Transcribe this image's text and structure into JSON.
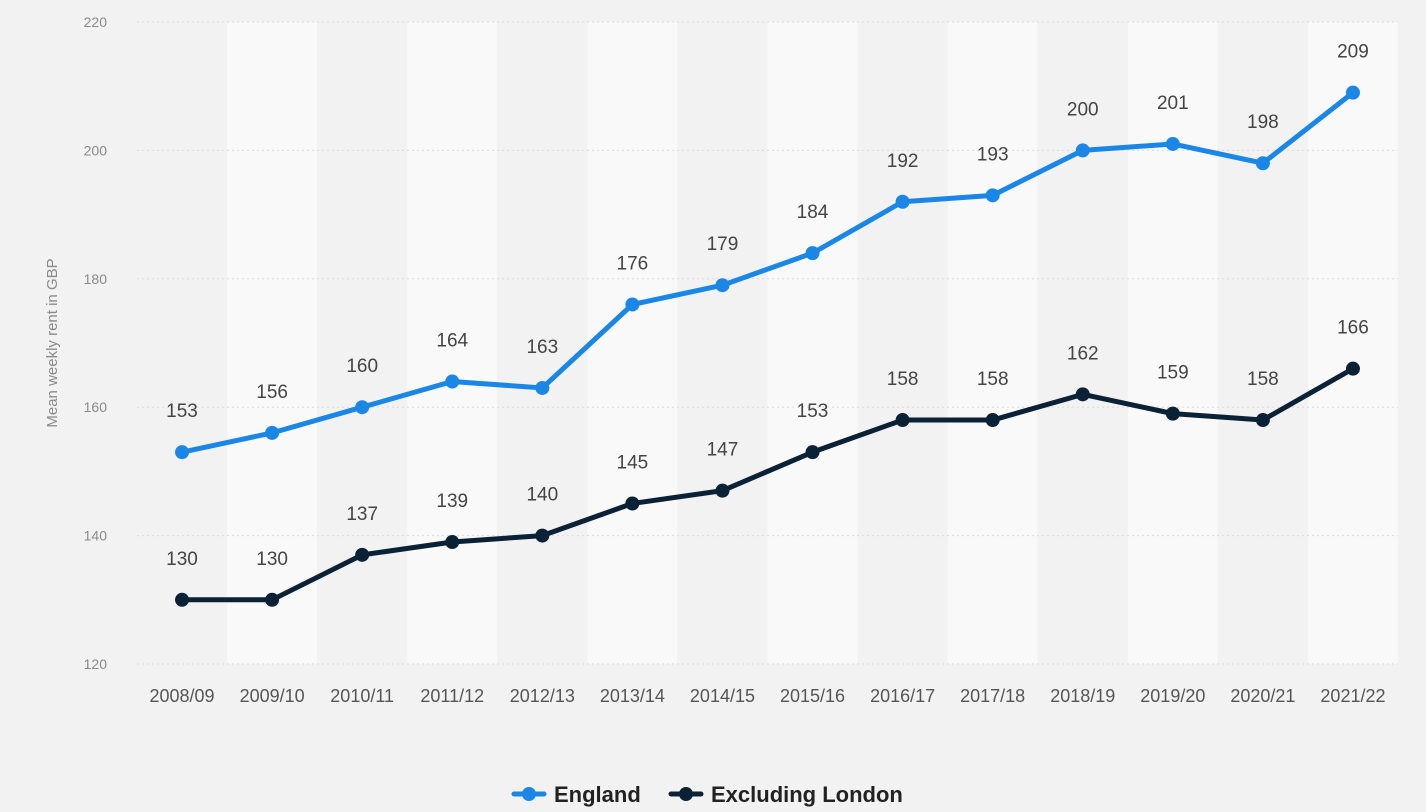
{
  "chart_data": {
    "type": "line",
    "title": "",
    "xlabel": "",
    "ylabel": "Mean weekly rent in GBP",
    "ylim": [
      120,
      220
    ],
    "yticks": [
      120,
      140,
      160,
      180,
      200,
      220
    ],
    "grid": true,
    "legend_position": "bottom-center",
    "categories": [
      "2008/09",
      "2009/10",
      "2010/11",
      "2011/12",
      "2012/13",
      "2013/14",
      "2014/15",
      "2015/16",
      "2016/17",
      "2017/18",
      "2018/19",
      "2019/20",
      "2020/21",
      "2021/22"
    ],
    "series": [
      {
        "name": "England",
        "color": "#1a86e6",
        "values": [
          153,
          156,
          160,
          164,
          163,
          176,
          179,
          184,
          192,
          193,
          200,
          201,
          198,
          209
        ]
      },
      {
        "name": "Excluding London",
        "color": "#0b2236",
        "values": [
          130,
          130,
          137,
          139,
          140,
          145,
          147,
          153,
          158,
          158,
          162,
          159,
          158,
          166
        ]
      }
    ]
  }
}
